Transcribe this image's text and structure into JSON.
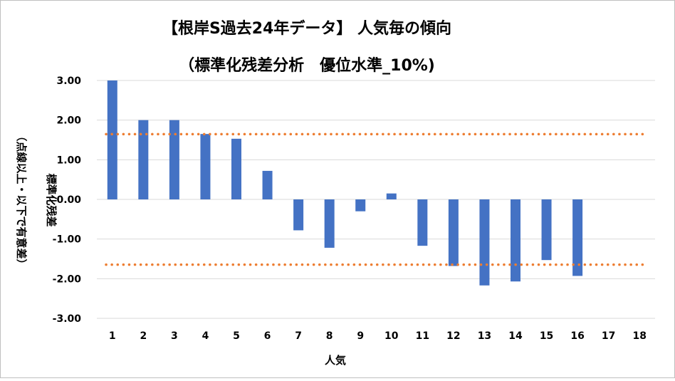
{
  "chart_data": {
    "type": "bar",
    "title_line1": "【根岸S過去24年データ】 人気毎の傾向",
    "title_line2": "（標準化残差分析　優位水準_10%)",
    "xlabel": "人気",
    "ylabel_line1": "標準化残差",
    "ylabel_line2": "（点線以上・以下で有意差）",
    "categories": [
      "1",
      "2",
      "3",
      "4",
      "5",
      "6",
      "7",
      "8",
      "9",
      "10",
      "11",
      "12",
      "13",
      "14",
      "15",
      "16",
      "17",
      "18"
    ],
    "values": [
      3.0,
      2.0,
      2.0,
      1.65,
      1.53,
      0.72,
      -0.78,
      -1.22,
      -0.3,
      0.15,
      -1.17,
      -1.68,
      -2.17,
      -2.07,
      -1.53,
      -1.93,
      0,
      0
    ],
    "ylim": [
      -3.0,
      3.0
    ],
    "yticks": [
      "3.00",
      "2.00",
      "1.00",
      "0.00",
      "-1.00",
      "-2.00",
      "-3.00"
    ],
    "threshold_upper": 1.645,
    "threshold_lower": -1.645,
    "bar_color": "#4472c4",
    "threshold_color": "#ed7d31",
    "grid": true
  }
}
